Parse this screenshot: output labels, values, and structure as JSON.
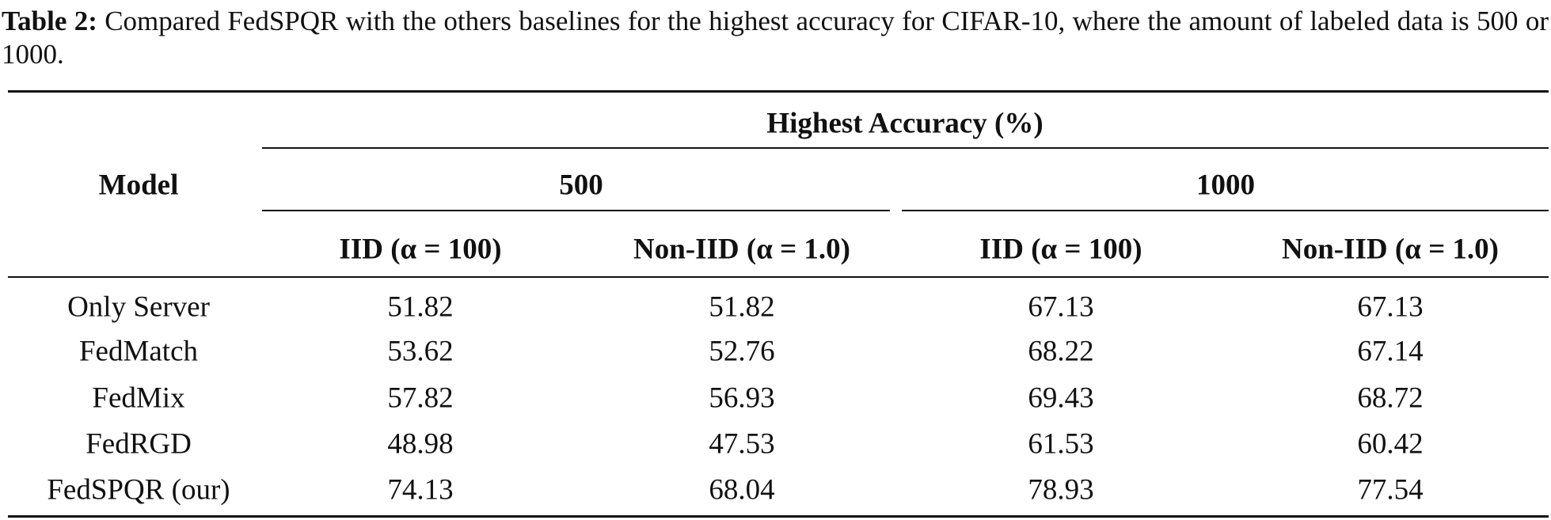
{
  "caption": {
    "label": "Table 2:",
    "text": "Compared FedSPQR with the others baselines for the highest accuracy for CIFAR-10, where the amount of labeled data is 500 or 1000."
  },
  "table": {
    "group_header": "Highest Accuracy (%)",
    "row_header": "Model",
    "subgroups": [
      "500",
      "1000"
    ],
    "columns": [
      "IID (α = 100)",
      "Non-IID (α = 1.0)",
      "IID (α = 100)",
      "Non-IID (α = 1.0)"
    ],
    "rows": [
      [
        "Only Server",
        "51.82",
        "51.82",
        "67.13",
        "67.13"
      ],
      [
        "FedMatch",
        "53.62",
        "52.76",
        "68.22",
        "67.14"
      ],
      [
        "FedMix",
        "57.82",
        "56.93",
        "69.43",
        "68.72"
      ],
      [
        "FedRGD",
        "48.98",
        "47.53",
        "61.53",
        "60.42"
      ],
      [
        "FedSPQR (our)",
        "74.13",
        "68.04",
        "78.93",
        "77.54"
      ]
    ]
  }
}
